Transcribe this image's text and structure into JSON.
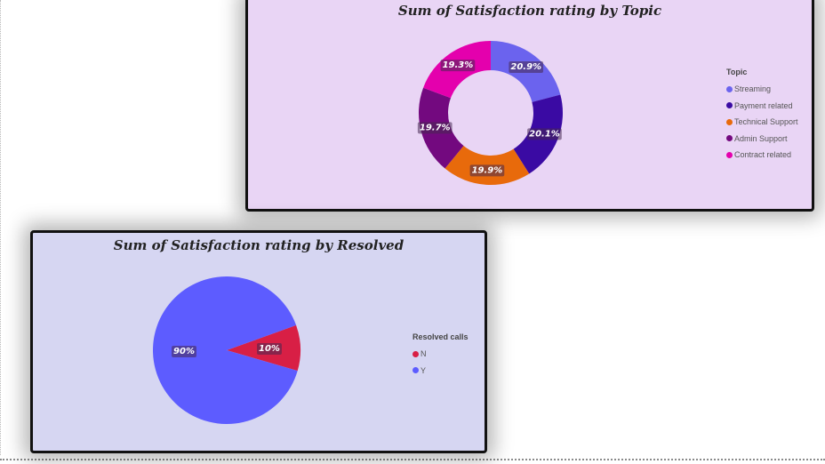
{
  "chart_data": [
    {
      "type": "pie",
      "subtype": "donut",
      "title": "Sum of Satisfaction rating by Topic",
      "legend_title": "Topic",
      "legend_position": "right",
      "categories": [
        "Streaming",
        "Payment related",
        "Technical Support",
        "Admin Support",
        "Contract related"
      ],
      "values": [
        20.9,
        20.1,
        19.9,
        19.7,
        19.3
      ],
      "data_labels": [
        "20.9%",
        "20.1%",
        "19.9%",
        "19.7%",
        "19.3%"
      ],
      "colors": [
        "#6b63ee",
        "#3a0aa3",
        "#e86a0b",
        "#73097f",
        "#e400ad"
      ]
    },
    {
      "type": "pie",
      "title": "Sum of Satisfaction rating by Resolved",
      "legend_title": "Resolved calls",
      "legend_position": "right",
      "categories": [
        "N",
        "Y"
      ],
      "values": [
        10,
        90
      ],
      "data_labels": [
        "10%",
        "90%"
      ],
      "colors": [
        "#d81f45",
        "#5d5cff"
      ]
    }
  ]
}
